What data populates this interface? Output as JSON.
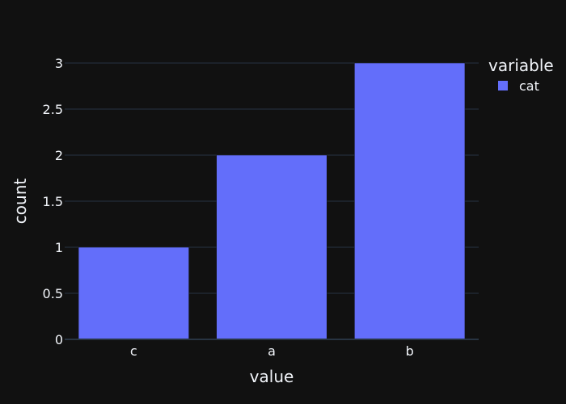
{
  "chart_data": {
    "type": "bar",
    "categories": [
      "c",
      "a",
      "b"
    ],
    "series": [
      {
        "name": "cat",
        "values": [
          1,
          2,
          3
        ],
        "color": "#636efa"
      }
    ],
    "xlabel": "value",
    "ylabel": "count",
    "ylim": [
      0,
      3
    ],
    "yticks": [
      0,
      0.5,
      1,
      1.5,
      2,
      2.5,
      3
    ],
    "ytick_labels": [
      "0",
      "0.5",
      "1",
      "1.5",
      "2",
      "2.5",
      "3"
    ],
    "legend_title": "variable",
    "legend_position": "top-right",
    "grid": true
  },
  "colors": {
    "background": "#111111",
    "grid": "#283442",
    "text": "#f2f5fa",
    "bar": "#636efa"
  }
}
